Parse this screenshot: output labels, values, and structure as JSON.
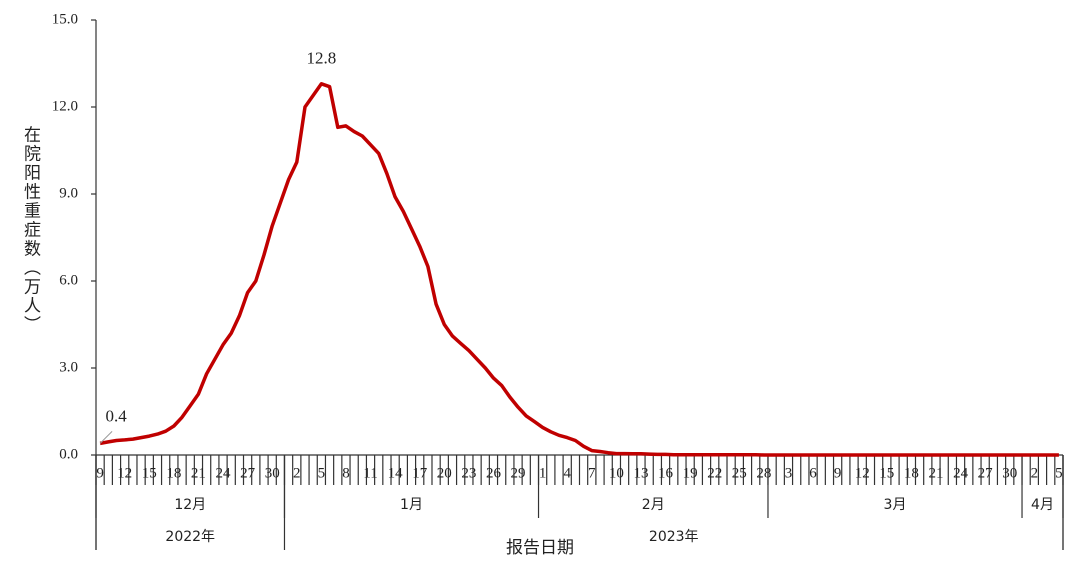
{
  "chart_data": {
    "type": "line",
    "y_label": "在院阳性重症数（万人）",
    "x_label": "报告日期",
    "categories": [
      "9",
      null,
      null,
      "12",
      null,
      null,
      "15",
      null,
      null,
      "18",
      null,
      null,
      "21",
      null,
      null,
      "24",
      null,
      null,
      "27",
      null,
      null,
      "30",
      null,
      null,
      "2",
      null,
      null,
      "5",
      null,
      null,
      "8",
      null,
      null,
      "11",
      null,
      null,
      "14",
      null,
      null,
      "17",
      null,
      null,
      "20",
      null,
      null,
      "23",
      null,
      null,
      "26",
      null,
      null,
      "29",
      null,
      null,
      "1",
      null,
      null,
      "4",
      null,
      null,
      "7",
      null,
      null,
      "10",
      null,
      null,
      "13",
      null,
      null,
      "16",
      null,
      null,
      "19",
      null,
      null,
      "22",
      null,
      null,
      "25",
      null,
      null,
      "28",
      null,
      null,
      "3",
      null,
      null,
      "6",
      null,
      null,
      "9",
      null,
      null,
      "12",
      null,
      null,
      "15",
      null,
      null,
      "18",
      null,
      null,
      "21",
      null,
      null,
      "24",
      null,
      null,
      "27",
      null,
      null,
      "30",
      null,
      null,
      "2",
      null,
      null,
      "5"
    ],
    "months": [
      "12月",
      "1月",
      "2月",
      "3月",
      "4月"
    ],
    "years": [
      "2022年",
      "2023年"
    ],
    "values": [
      0.4,
      0.45,
      0.5,
      0.52,
      0.55,
      0.6,
      0.65,
      0.72,
      0.82,
      1.0,
      1.3,
      1.7,
      2.1,
      2.8,
      3.3,
      3.8,
      4.2,
      4.8,
      5.6,
      6.0,
      6.9,
      7.9,
      8.7,
      9.5,
      10.1,
      12.0,
      12.4,
      12.8,
      12.7,
      11.3,
      11.35,
      11.15,
      11.0,
      10.7,
      10.4,
      9.7,
      8.9,
      8.4,
      7.8,
      7.2,
      6.5,
      5.2,
      4.5,
      4.1,
      3.85,
      3.6,
      3.3,
      3.0,
      2.65,
      2.4,
      2.0,
      1.65,
      1.35,
      1.15,
      0.95,
      0.8,
      0.68,
      0.6,
      0.5,
      0.3,
      0.15,
      0.12,
      0.08,
      0.05,
      0.05,
      0.04,
      0.04,
      0.03,
      0.02,
      0.02,
      0.01,
      0.01,
      0.01,
      0.01,
      0.01,
      0.01,
      0.01,
      0.01,
      0.01,
      0.01,
      0.01,
      0,
      0,
      0,
      0,
      0,
      0,
      0,
      0,
      0,
      0,
      0,
      0,
      0,
      0,
      0,
      0,
      0,
      0,
      0,
      0,
      0,
      0,
      0,
      0,
      0,
      0,
      0,
      0,
      0,
      0,
      0,
      0,
      0,
      0,
      0,
      0,
      0
    ],
    "color": "#c00000",
    "ylim": [
      0,
      15
    ],
    "yticks": [
      {
        "value": 0,
        "label": "0.0"
      },
      {
        "value": 3,
        "label": "3.0"
      },
      {
        "value": 6,
        "label": "6.0"
      },
      {
        "value": 9,
        "label": "9.0"
      },
      {
        "value": 12,
        "label": "12.0"
      },
      {
        "value": 15,
        "label": "15.0"
      }
    ]
  }
}
